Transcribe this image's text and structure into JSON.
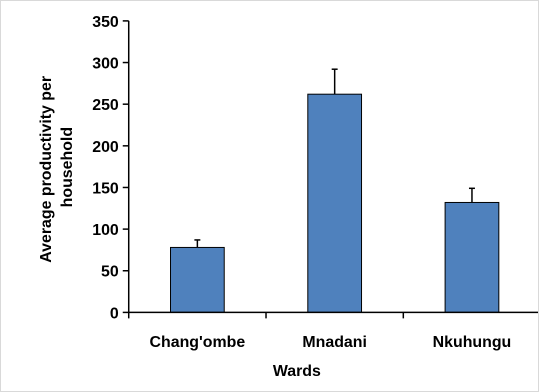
{
  "chart_data": {
    "type": "bar",
    "title": "",
    "categories": [
      "Chang'ombe",
      "Mnadani",
      "Nkuhungu"
    ],
    "values": [
      78,
      262,
      132
    ],
    "error_bars": [
      9,
      30,
      17
    ],
    "xlabel": "Wards",
    "ylabel_lines": [
      "Average productivity per",
      "household"
    ],
    "ylim": [
      0,
      350
    ],
    "yticks": [
      0,
      50,
      100,
      150,
      200,
      250,
      300,
      350
    ],
    "grid": false,
    "legend": "none",
    "bar_color": "#4f81bd",
    "bar_edge_color": "#000000"
  }
}
